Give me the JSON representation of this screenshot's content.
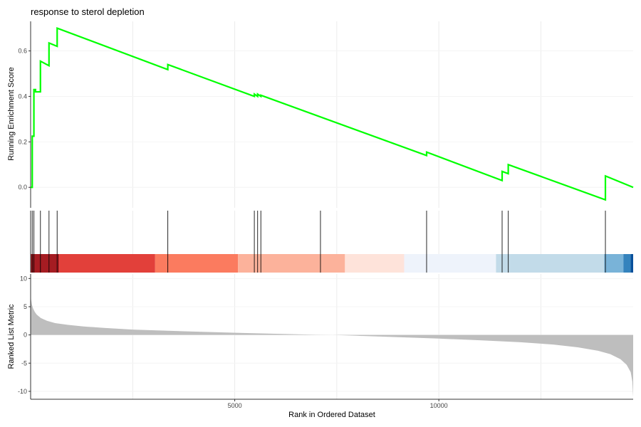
{
  "chart_data": {
    "type": "line",
    "title": "response to sterol depletion",
    "panels": {
      "enrichment": {
        "ylabel": "Running Enrichment Score",
        "ylim": [
          -0.09,
          0.73
        ],
        "yticks": [
          0.0,
          0.2,
          0.4,
          0.6
        ],
        "ytick_labels": [
          "0.0",
          "0.2",
          "0.4",
          "0.6"
        ],
        "line_color": "#00ff00",
        "series": [
          {
            "x": [
              0,
              40,
              40,
              80,
              80,
              120,
              120,
              240,
              240,
              450,
              450,
              650,
              650,
              3360,
              3360,
              5480,
              5480,
              5560,
              5560,
              5640,
              5640,
              9700,
              9700,
              11550,
              11550,
              11700,
              11700,
              14080,
              14080,
              14760
            ],
            "y": [
              0.0,
              0.0,
              0.225,
              0.225,
              0.43,
              0.43,
              0.42,
              0.42,
              0.555,
              0.535,
              0.635,
              0.62,
              0.7,
              0.518,
              0.54,
              0.4,
              0.41,
              0.4,
              0.41,
              0.4,
              0.405,
              0.14,
              0.155,
              0.03,
              0.07,
              0.06,
              0.1,
              -0.055,
              0.05,
              0.0
            ]
          }
        ]
      },
      "hits": {
        "positions": [
          40,
          80,
          240,
          450,
          650,
          3360,
          5480,
          5560,
          5640,
          7100,
          9700,
          11550,
          11700,
          14080
        ]
      },
      "rank_colorbar": {
        "segments": [
          {
            "x0": 0,
            "x1": 700,
            "color": "#a51c22"
          },
          {
            "x0": 700,
            "x1": 3050,
            "color": "#e2403a"
          },
          {
            "x0": 3050,
            "x1": 5080,
            "color": "#fb7b5f"
          },
          {
            "x0": 5080,
            "x1": 7700,
            "color": "#fcb29b"
          },
          {
            "x0": 7700,
            "x1": 9150,
            "color": "#fee3da"
          },
          {
            "x0": 9150,
            "x1": 11400,
            "color": "#eef3fb"
          },
          {
            "x0": 11400,
            "x1": 14050,
            "color": "#c2dbe9"
          },
          {
            "x0": 14050,
            "x1": 14520,
            "color": "#79b3d8"
          },
          {
            "x0": 14520,
            "x1": 14700,
            "color": "#3483bd"
          },
          {
            "x0": 14700,
            "x1": 14760,
            "color": "#08509b"
          }
        ]
      },
      "ranked_metric": {
        "ylabel": "Ranked List Metric",
        "ylim": [
          -11.4,
          10.8
        ],
        "yticks": [
          10,
          5,
          0,
          -5,
          -10
        ],
        "ytick_labels": [
          "10",
          "5",
          "0",
          "-5",
          "-10"
        ],
        "fill_color": "#bebebe",
        "x": [
          0,
          10,
          30,
          60,
          100,
          150,
          250,
          400,
          600,
          900,
          1300,
          1800,
          2500,
          3300,
          4200,
          5200,
          6000,
          7000,
          7400,
          8000,
          9000,
          10000,
          11000,
          12000,
          12800,
          13400,
          13900,
          14200,
          14450,
          14600,
          14700,
          14740,
          14760
        ],
        "y": [
          7.8,
          6.3,
          5.4,
          4.7,
          4.1,
          3.6,
          3.0,
          2.5,
          2.1,
          1.8,
          1.5,
          1.25,
          0.95,
          0.75,
          0.55,
          0.35,
          0.2,
          0.03,
          0.0,
          -0.15,
          -0.4,
          -0.65,
          -0.95,
          -1.3,
          -1.7,
          -2.2,
          -2.8,
          -3.4,
          -4.3,
          -5.3,
          -6.6,
          -8.3,
          -11.0
        ]
      }
    },
    "x_axis": {
      "label": "Rank in Ordered Dataset",
      "xlim": [
        0,
        14760
      ],
      "ticks": [
        5000,
        10000
      ],
      "tick_labels": [
        "5000",
        "10000"
      ],
      "gridlines": [
        2500,
        5000,
        7500,
        10000,
        12500
      ]
    },
    "grid": true
  }
}
